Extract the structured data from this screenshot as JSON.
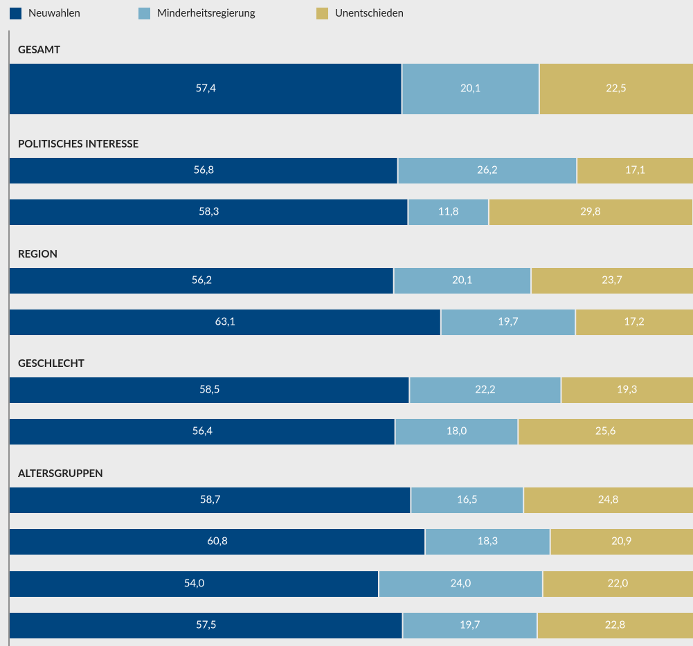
{
  "chart_data": {
    "type": "bar",
    "orientation": "horizontal",
    "stacked": true,
    "xlim": [
      0,
      100
    ],
    "row_groups": [
      "GESAMT",
      "POLITISCHES INTERESSE",
      null,
      "REGION",
      null,
      "GESCHLECHT",
      null,
      "ALTERSGRUPPEN",
      null,
      null,
      null
    ],
    "series": [
      {
        "name": "Neuwahlen",
        "color": "#00457f",
        "values": [
          57.4,
          56.8,
          58.3,
          56.2,
          63.1,
          58.5,
          56.4,
          58.7,
          60.8,
          54.0,
          57.5
        ],
        "value_labels": [
          "57,4",
          "56,8",
          "58,3",
          "56,2",
          "63,1",
          "58,5",
          "56,4",
          "58,7",
          "60,8",
          "54,0",
          "57,5"
        ]
      },
      {
        "name": "Minderheitsregierung",
        "color": "#79afc9",
        "values": [
          20.1,
          26.2,
          11.8,
          20.1,
          19.7,
          22.2,
          18.0,
          16.5,
          18.3,
          24.0,
          19.7
        ],
        "value_labels": [
          "20,1",
          "26,2",
          "11,8",
          "20,1",
          "19,7",
          "22,2",
          "18,0",
          "16,5",
          "18,3",
          "24,0",
          "19,7"
        ]
      },
      {
        "name": "Unentschieden",
        "color": "#cdb86a",
        "values": [
          22.5,
          17.1,
          29.8,
          23.7,
          17.2,
          19.3,
          25.6,
          24.8,
          20.9,
          22.0,
          22.8
        ],
        "value_labels": [
          "22,5",
          "17,1",
          "29,8",
          "23,7",
          "17,2",
          "19,3",
          "25,6",
          "24,8",
          "20,9",
          "22,0",
          "22,8"
        ]
      }
    ]
  }
}
